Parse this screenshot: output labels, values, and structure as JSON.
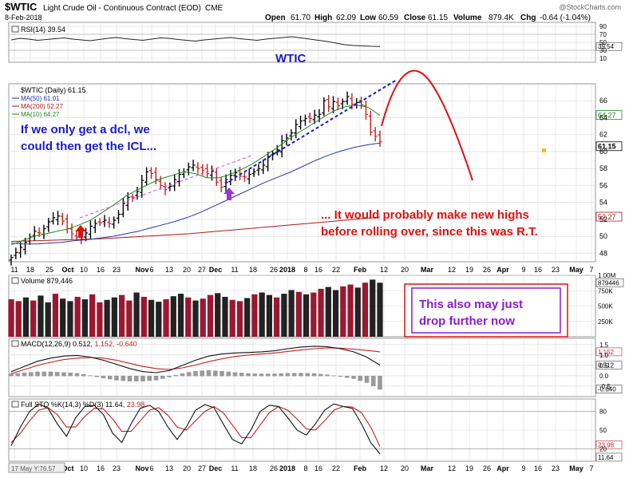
{
  "header": {
    "symbol": "$WTIC",
    "name": "Light Crude Oil - Continuous Contract (EOD)",
    "exchange": "CME",
    "date": "8-Feb-2018",
    "ohlc": {
      "open_label": "Open",
      "open": "61.70",
      "high_label": "High",
      "high": "62.09",
      "low_label": "Low",
      "low": "60.59",
      "close_label": "Close",
      "close": "61.15",
      "volume_label": "Volume",
      "volume": "879.4K",
      "chg_label": "Chg",
      "chg": "-0.64 (-1.04%)"
    },
    "watermark": "@StockCharts.com"
  },
  "colors": {
    "up": "#000000",
    "down": "#c62020",
    "ma50": "#2233aa",
    "ma200": "#b01818",
    "ma10": "#1e8a1e",
    "annot_blue": "#1a1ac8",
    "annot_red": "#dd1111",
    "annot_purple": "#8a1ccf",
    "panel_bg": "#ffffff",
    "grid": "#d9d9d9"
  },
  "panels": {
    "rsi": {
      "legend": "RSI(14) 39.54",
      "ticks": [
        "90",
        "70",
        "50",
        "30",
        "10"
      ],
      "last": "39.54"
    },
    "price": {
      "legend": [
        {
          "label": "$WTIC (Daily) 61.15",
          "color": "#000000"
        },
        {
          "label": "MA(50) 61.01",
          "color": "#2233aa"
        },
        {
          "label": "MA(200) 52.27",
          "color": "#b01818"
        },
        {
          "label": "MA(10) 64.27",
          "color": "#1e8a1e"
        }
      ],
      "ticks": [
        "66",
        "64",
        "62",
        "60",
        "58",
        "56",
        "54",
        "52",
        "50",
        "48"
      ],
      "tags": [
        {
          "value": "64.27",
          "color": "#1e8a1e"
        },
        {
          "value": "61.15",
          "color": "#000000"
        },
        {
          "value": "52.27",
          "color": "#b01818"
        }
      ]
    },
    "volume": {
      "legend": "Volume 879,446",
      "ticks": [
        "1.00M",
        "750K",
        "500K",
        "250K"
      ],
      "last": "879446"
    },
    "macd": {
      "legend_a": "MACD(12,26,9) 0.512, ",
      "legend_b": "1.152",
      "legend_c": ", -0.640",
      "ticks": [
        "1.5",
        "1.0",
        "0.5",
        "0.0",
        "-0.5"
      ],
      "tags": [
        "1.152",
        "0.512",
        "-0.640"
      ]
    },
    "sto": {
      "legend_a": "Full STO %K(14,3) %D(3) 11.64, ",
      "legend_b": "23.98",
      "ticks": [
        "80",
        "50",
        "20"
      ],
      "tags": [
        "23.98",
        "11.64"
      ]
    }
  },
  "x_axis": {
    "labels": [
      "11",
      "18",
      "25",
      "Oct",
      "10",
      "16",
      "23",
      "Nov",
      "6",
      "13",
      "20",
      "27",
      "Dec",
      "11",
      "18",
      "26",
      "2018",
      "8",
      "16",
      "22",
      "Feb",
      "12",
      "20",
      "Mar",
      "12",
      "19",
      "26",
      "Apr",
      "9",
      "16",
      "23",
      "May",
      "7"
    ],
    "bold": [
      "Oct",
      "Nov",
      "Dec",
      "2018",
      "Feb",
      "Mar",
      "Apr",
      "May"
    ],
    "footer": "17 May Y:76.57"
  },
  "annotations": {
    "wtic": "WTIC",
    "dcl_1": "If we only get a dcl, we",
    "dcl_2": "could then get the ICL...",
    "highs_1": "... It would probably make new highs",
    "highs_2": "before rolling over, since this was R.T.",
    "drop_1": "This also may just",
    "drop_2": "drop further now"
  },
  "chart_data": {
    "type": "bar",
    "title": "$WTIC Light Crude Oil - Continuous Contract (EOD)",
    "x_range": [
      "2017-09-08",
      "2018-05-08"
    ],
    "price_ylim": [
      47,
      68
    ],
    "series": [
      {
        "name": "$WTIC (Daily)",
        "values": [
          47.5,
          48.1,
          48.7,
          49.3,
          49.9,
          50.6,
          50.4,
          50.9,
          51.7,
          52.2,
          52.4,
          51.8,
          50.9,
          50.3,
          49.9,
          49.7,
          50.4,
          51.2,
          51.5,
          51.6,
          51.9,
          51.5,
          51.9,
          52.6,
          53.9,
          54.6,
          54.6,
          55.3,
          56.6,
          57.6,
          57.4,
          56.7,
          56.0,
          55.5,
          55.9,
          56.7,
          57.3,
          57.6,
          58.2,
          58.4,
          58.0,
          57.8,
          57.4,
          57.7,
          56.4,
          55.8,
          56.7,
          57.2,
          57.5,
          57.1,
          57.0,
          57.3,
          57.6,
          58.0,
          58.4,
          59.4,
          59.8,
          60.2,
          61.3,
          61.6,
          62.2,
          63.2,
          63.6,
          63.9,
          63.9,
          64.3,
          64.4,
          66.0,
          65.3,
          65.9,
          65.4,
          65.9,
          66.5,
          65.6,
          65.8,
          65.5,
          64.4,
          62.3,
          61.8,
          61.15
        ]
      },
      {
        "name": "MA(50)",
        "values": [
          49.2,
          49.1,
          49.1,
          49.2,
          49.3,
          49.5,
          49.6,
          49.8,
          50.0,
          50.3,
          50.6,
          51.0,
          51.4,
          51.8,
          52.3,
          52.9,
          53.6,
          54.3,
          55.0,
          55.7,
          56.4,
          57.0,
          57.6,
          58.3,
          59.0,
          59.6,
          60.1,
          60.5,
          60.8,
          61.01
        ]
      },
      {
        "name": "MA(200)",
        "values": [
          49.4,
          49.45,
          49.5,
          49.55,
          49.6,
          49.65,
          49.7,
          49.8,
          49.9,
          50.0,
          50.1,
          50.2,
          50.3,
          50.45,
          50.6,
          50.75,
          50.9,
          51.05,
          51.2,
          51.35,
          51.5,
          51.65,
          51.8,
          51.95,
          52.1,
          52.27
        ]
      },
      {
        "name": "MA(10)",
        "values": [
          49.0,
          49.5,
          50.0,
          50.3,
          50.6,
          50.9,
          51.4,
          52.0,
          52.9,
          53.8,
          54.8,
          55.5,
          56.2,
          56.8,
          57.2,
          57.6,
          57.4,
          56.9,
          56.9,
          57.3,
          57.9,
          58.6,
          59.5,
          60.4,
          61.4,
          62.3,
          63.1,
          64.0,
          64.8,
          65.3,
          65.5,
          65.2,
          64.27
        ]
      },
      {
        "name": "RSI(14)",
        "values": [
          56,
          60,
          58,
          55,
          57,
          59,
          61,
          58,
          56,
          54,
          57,
          60,
          62,
          59,
          57,
          55,
          58,
          61,
          60,
          57,
          55,
          53,
          56,
          58,
          60,
          62,
          59,
          57,
          55,
          58,
          60,
          62,
          64,
          61,
          58,
          55,
          52,
          48,
          44,
          42,
          41,
          40,
          39.54
        ]
      },
      {
        "name": "Volume",
        "values": [
          610000,
          580000,
          640000,
          590000,
          670000,
          560000,
          700000,
          620000,
          580000,
          650000,
          610000,
          690000,
          560000,
          600000,
          640000,
          680000,
          590000,
          720000,
          650000,
          600000,
          570000,
          610000,
          660000,
          700000,
          640000,
          590000,
          620000,
          680000,
          710000,
          650000,
          600000,
          580000,
          630000,
          690000,
          720000,
          680000,
          640000,
          700000,
          760000,
          730000,
          690000,
          720000,
          780000,
          810000,
          760000,
          820000,
          850000,
          800000,
          880000,
          930000,
          879446
        ]
      },
      {
        "name": "MACD",
        "values": [
          0.2,
          0.45,
          0.7,
          0.85,
          0.95,
          0.98,
          0.9,
          0.75,
          0.55,
          0.35,
          0.2,
          0.15,
          0.25,
          0.5,
          0.75,
          0.95,
          1.05,
          1.1,
          1.12,
          1.15,
          1.2,
          1.3,
          1.38,
          1.42,
          1.4,
          1.3,
          1.15,
          0.9,
          0.512
        ]
      },
      {
        "name": "Signal",
        "values": [
          0.1,
          0.3,
          0.5,
          0.65,
          0.78,
          0.85,
          0.88,
          0.85,
          0.75,
          0.6,
          0.45,
          0.35,
          0.3,
          0.38,
          0.52,
          0.68,
          0.82,
          0.93,
          1.0,
          1.05,
          1.1,
          1.17,
          1.24,
          1.3,
          1.34,
          1.33,
          1.28,
          1.22,
          1.152
        ]
      },
      {
        "name": "%K",
        "values": [
          25,
          55,
          80,
          92,
          85,
          60,
          40,
          70,
          88,
          90,
          75,
          45,
          30,
          60,
          85,
          90,
          80,
          55,
          35,
          55,
          82,
          91,
          86,
          60,
          35,
          28,
          50,
          80,
          90,
          88,
          70,
          50,
          42,
          60,
          82,
          92,
          88,
          85,
          60,
          30,
          11.64
        ]
      },
      {
        "name": "%D",
        "values": [
          30,
          45,
          65,
          82,
          86,
          75,
          55,
          55,
          72,
          85,
          84,
          68,
          48,
          48,
          65,
          82,
          86,
          74,
          55,
          50,
          65,
          80,
          88,
          78,
          58,
          38,
          38,
          58,
          78,
          88,
          82,
          68,
          52,
          50,
          65,
          82,
          88,
          87,
          78,
          55,
          23.98
        ]
      }
    ],
    "rsi_ylim": [
      0,
      100
    ],
    "macd_ylim": [
      -1.0,
      1.8
    ],
    "sto_ylim": [
      0,
      100
    ],
    "volume_ylim": [
      0,
      1000000
    ]
  }
}
